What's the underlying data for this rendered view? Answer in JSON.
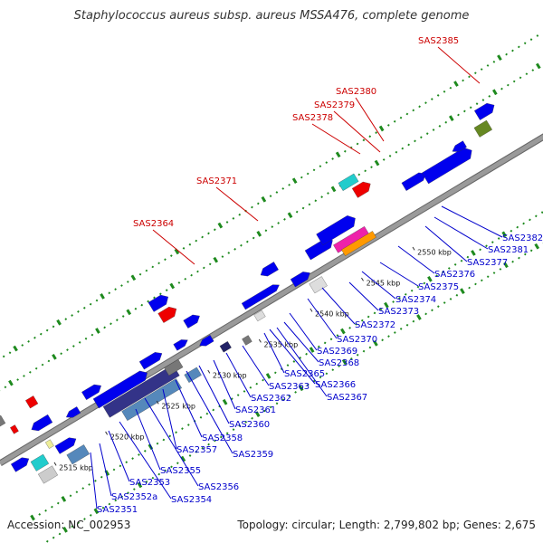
{
  "title": "Staphylococcus aureus subsp. aureus MSSA476, complete genome",
  "footer": {
    "accession": "Accession: NC_002953",
    "topology": "Topology: circular; Length: 2,799,802 bp; Genes: 2,675"
  },
  "colors": {
    "backbone": "#9a9a9a",
    "top_label": "#cc0000",
    "bottom_label": "#0000cc",
    "gc_tick": "#1e8a1e",
    "gene_blue": "#0000ee",
    "gene_red": "#ee0000",
    "gene_cyan": "#22cccc",
    "gene_gray": "#777777",
    "gene_steel": "#5588bb",
    "gene_magenta": "#ee22aa",
    "gene_orange": "#ff9900",
    "gene_olive": "#668822"
  },
  "scale_labels": [
    "2515 kbp",
    "2520 kbp",
    "2525 kbp",
    "2530 kbp",
    "2535 kbp",
    "2540 kbp",
    "2545 kbp",
    "2550 kbp"
  ],
  "top_labels": [
    "SAS2385",
    "SAS2380",
    "SAS2379",
    "SAS2378",
    "SAS2371",
    "SAS2364"
  ],
  "bottom_labels": [
    "SAS2382",
    "SAS2381",
    "SAS2377",
    "SAS2376",
    "SAS2375",
    "SAS2374",
    "SAS2373",
    "SAS2372",
    "SAS2370",
    "SAS2369",
    "SAS2368",
    "SAS2367",
    "SAS2366",
    "SAS2365",
    "SAS2363",
    "SAS2362",
    "SAS2361",
    "SAS2360",
    "SAS2359",
    "SAS2358",
    "SAS2357",
    "SAS2356",
    "SAS2355",
    "SAS2354",
    "SAS2353",
    "SAS2352a",
    "SAS2351"
  ]
}
